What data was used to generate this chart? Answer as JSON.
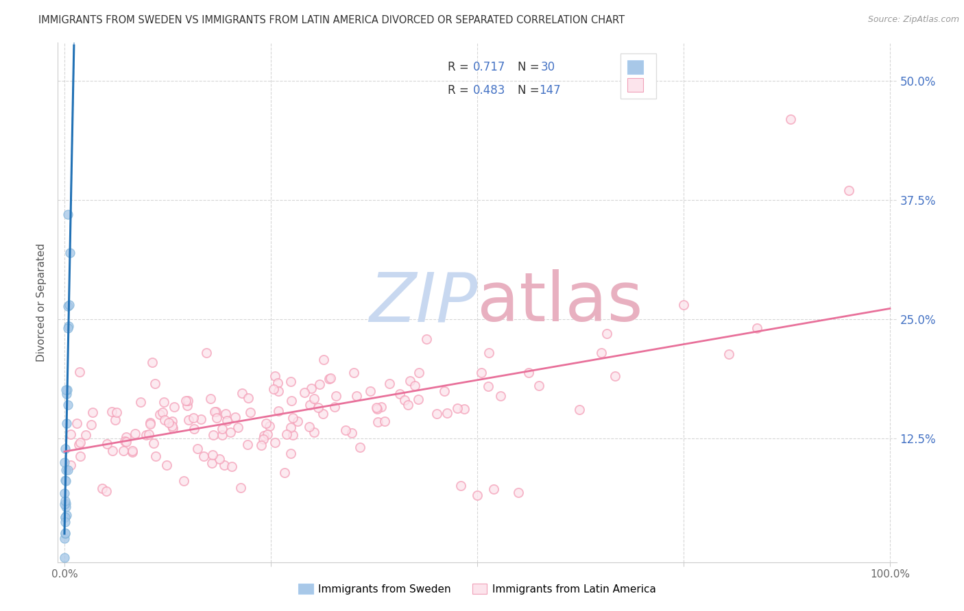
{
  "title": "IMMIGRANTS FROM SWEDEN VS IMMIGRANTS FROM LATIN AMERICA DIVORCED OR SEPARATED CORRELATION CHART",
  "source": "Source: ZipAtlas.com",
  "ylabel": "Divorced or Separated",
  "right_ytick_labels": [
    "12.5%",
    "25.0%",
    "37.5%",
    "50.0%"
  ],
  "right_ytick_vals": [
    0.125,
    0.25,
    0.375,
    0.5
  ],
  "sweden_color_fill": "#a8c8e8",
  "sweden_color_edge": "#7fb3d8",
  "latam_color_edge": "#f4a0b8",
  "latam_color_fill": "#fce4ec",
  "sweden_line_color": "#2171b5",
  "latam_line_color": "#e8709a",
  "background_color": "#ffffff",
  "grid_color": "#cccccc",
  "title_color": "#333333",
  "right_axis_color": "#4472c4",
  "legend_R_label_color": "#000000",
  "legend_val_color": "#4472c4",
  "watermark_zip_color": "#c8d8f0",
  "watermark_atlas_color": "#e8b0c0",
  "xmin": 0.0,
  "xmax": 1.0,
  "ymin": 0.0,
  "ymax": 0.54,
  "sweden_seed": 77,
  "latam_seed": 42
}
